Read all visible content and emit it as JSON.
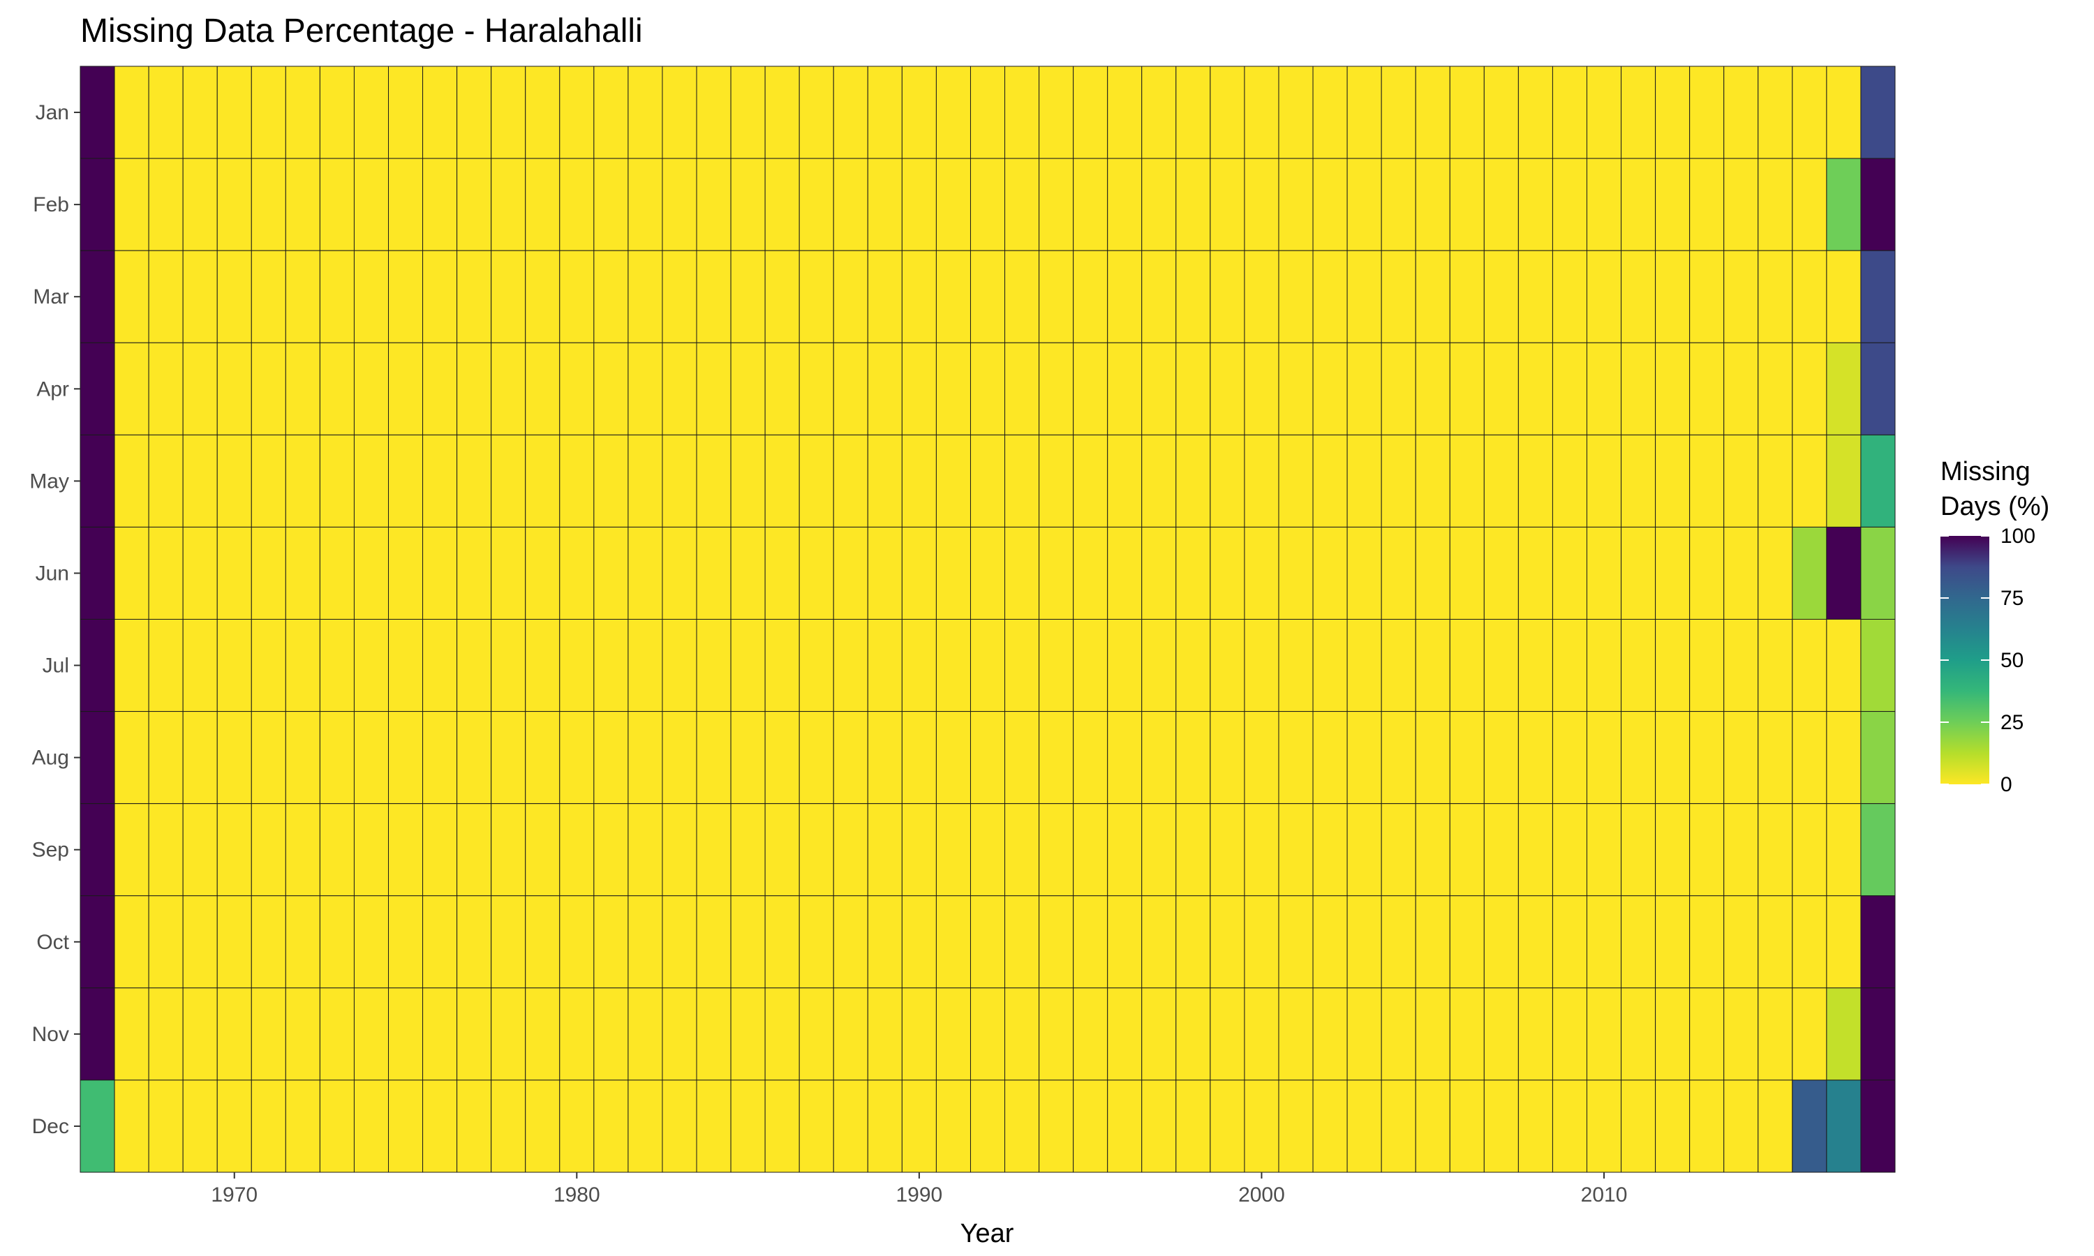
{
  "chart_data": {
    "type": "heatmap",
    "title": "Missing Data Percentage - Haralahalli",
    "xlabel": "Year",
    "ylabel": "",
    "x_range": [
      1966,
      2018
    ],
    "x_ticks": [
      1970,
      1980,
      1990,
      2000,
      2010
    ],
    "y_categories": [
      "Jan",
      "Feb",
      "Mar",
      "Apr",
      "May",
      "Jun",
      "Jul",
      "Aug",
      "Sep",
      "Oct",
      "Nov",
      "Dec"
    ],
    "default_value": 0,
    "nonzero_cells": [
      {
        "year": 1966,
        "month": "Jan",
        "value": 100
      },
      {
        "year": 1966,
        "month": "Feb",
        "value": 100
      },
      {
        "year": 1966,
        "month": "Mar",
        "value": 100
      },
      {
        "year": 1966,
        "month": "Apr",
        "value": 100
      },
      {
        "year": 1966,
        "month": "May",
        "value": 100
      },
      {
        "year": 1966,
        "month": "Jun",
        "value": 100
      },
      {
        "year": 1966,
        "month": "Jul",
        "value": 100
      },
      {
        "year": 1966,
        "month": "Aug",
        "value": 100
      },
      {
        "year": 1966,
        "month": "Sep",
        "value": 100
      },
      {
        "year": 1966,
        "month": "Oct",
        "value": 100
      },
      {
        "year": 1966,
        "month": "Nov",
        "value": 100
      },
      {
        "year": 1966,
        "month": "Dec",
        "value": 35
      },
      {
        "year": 2016,
        "month": "Jun",
        "value": 17
      },
      {
        "year": 2016,
        "month": "Dec",
        "value": 80
      },
      {
        "year": 2017,
        "month": "Feb",
        "value": 25
      },
      {
        "year": 2017,
        "month": "Apr",
        "value": 7
      },
      {
        "year": 2017,
        "month": "May",
        "value": 7
      },
      {
        "year": 2017,
        "month": "Jun",
        "value": 100
      },
      {
        "year": 2017,
        "month": "Nov",
        "value": 10
      },
      {
        "year": 2017,
        "month": "Dec",
        "value": 63
      },
      {
        "year": 2018,
        "month": "Jan",
        "value": 87
      },
      {
        "year": 2018,
        "month": "Feb",
        "value": 100
      },
      {
        "year": 2018,
        "month": "Mar",
        "value": 87
      },
      {
        "year": 2018,
        "month": "Apr",
        "value": 87
      },
      {
        "year": 2018,
        "month": "May",
        "value": 40
      },
      {
        "year": 2018,
        "month": "Jun",
        "value": 20
      },
      {
        "year": 2018,
        "month": "Jul",
        "value": 16
      },
      {
        "year": 2018,
        "month": "Aug",
        "value": 20
      },
      {
        "year": 2018,
        "month": "Sep",
        "value": 27
      },
      {
        "year": 2018,
        "month": "Oct",
        "value": 100
      },
      {
        "year": 2018,
        "month": "Nov",
        "value": 100
      },
      {
        "year": 2018,
        "month": "Dec",
        "value": 100
      }
    ],
    "legend": {
      "title_line1": "Missing",
      "title_line2": "Days (%)",
      "range": [
        0,
        100
      ],
      "ticks": [
        0,
        25,
        50,
        75,
        100
      ],
      "position": "right",
      "colormap": "viridis (reversed)"
    },
    "grid": false
  }
}
